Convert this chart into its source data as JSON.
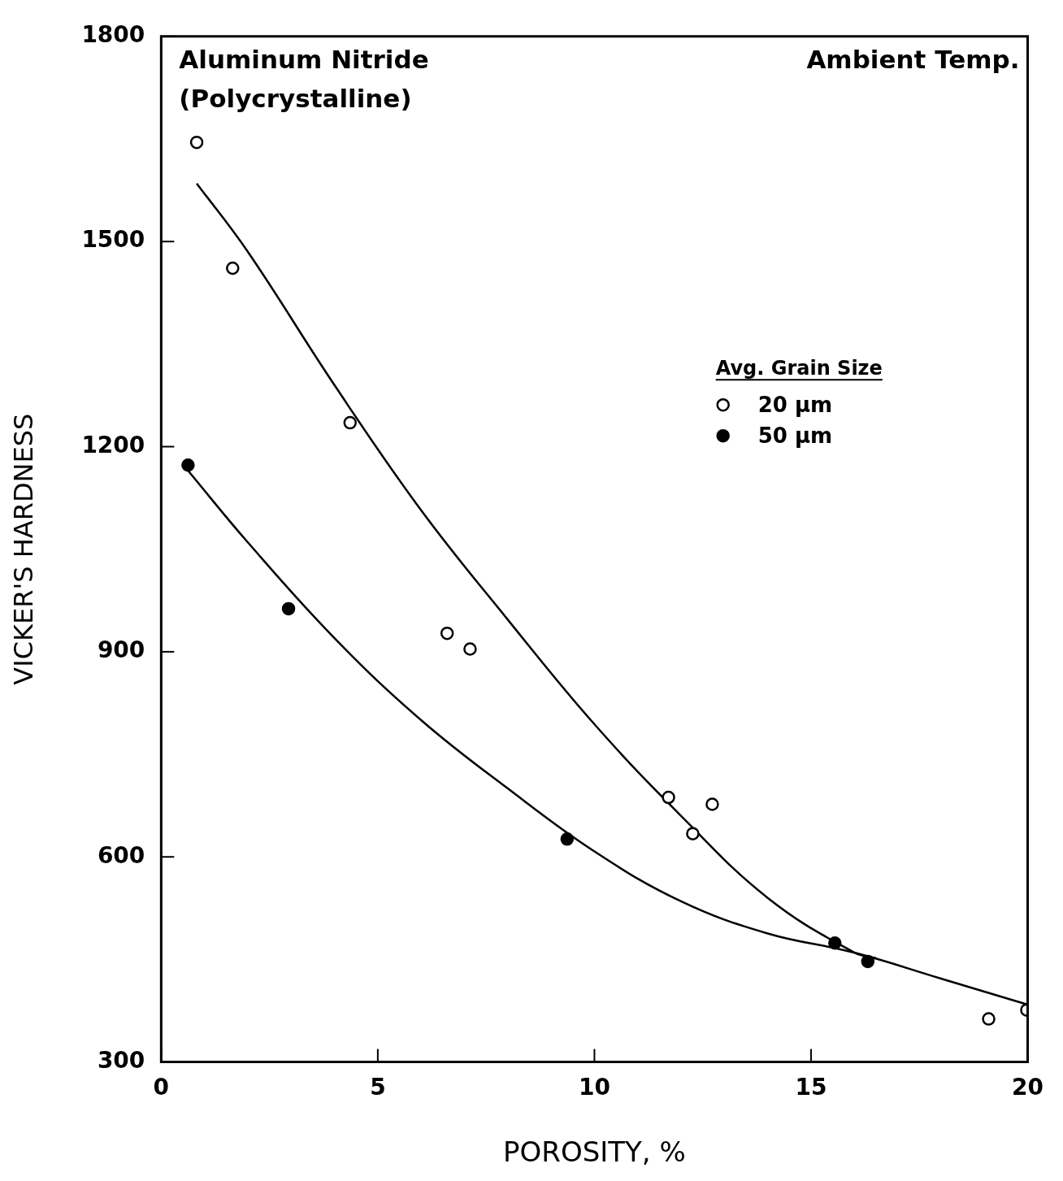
{
  "chart_data": {
    "type": "scatter",
    "xlabel": "POROSITY, %",
    "ylabel": "VICKER'S HARDNESS",
    "legend_title": "Avg. Grain Size",
    "annotations": [
      "Aluminum Nitride\n(Polycrystalline)",
      "Ambient Temp."
    ],
    "xlim": [
      0,
      20
    ],
    "xticks": [
      0,
      5,
      10,
      15,
      20
    ],
    "ylim": [
      300,
      1800
    ],
    "yticks": [
      300,
      600,
      900,
      1200,
      1500,
      1800
    ],
    "grid": false,
    "legend": "right",
    "series": [
      {
        "name": "20 µm",
        "color": "#000000",
        "marker": "circle",
        "x": [
          0.82,
          1.65,
          4.36,
          6.6,
          7.13,
          11.71,
          12.27,
          12.72,
          19.1,
          19.98
        ],
        "values": [
          1645,
          1461,
          1235,
          927,
          904,
          687,
          634,
          677,
          363,
          376
        ]
      },
      {
        "name": "50 µm",
        "color": "#000000",
        "marker": "circle",
        "x": [
          0.62,
          2.94,
          9.37,
          15.55,
          16.31
        ],
        "values": [
          1173,
          963,
          626,
          474,
          447
        ]
      },
      {
        "type": "line",
        "color": "#000000",
        "marker": "none",
        "x": [
          0.82,
          2,
          4,
          6,
          8,
          10,
          12,
          14,
          16,
          16.5
        ],
        "values": [
          1585,
          1485,
          1290,
          1107,
          947,
          794,
          660,
          540,
          460,
          452
        ]
      },
      {
        "type": "line",
        "color": "#000000",
        "marker": "none",
        "x": [
          0.62,
          2,
          4,
          6,
          8,
          10,
          12,
          14,
          16,
          18,
          20
        ],
        "values": [
          1165,
          1060,
          920,
          800,
          700,
          608,
          535,
          488,
          460,
          422,
          384
        ]
      }
    ]
  }
}
